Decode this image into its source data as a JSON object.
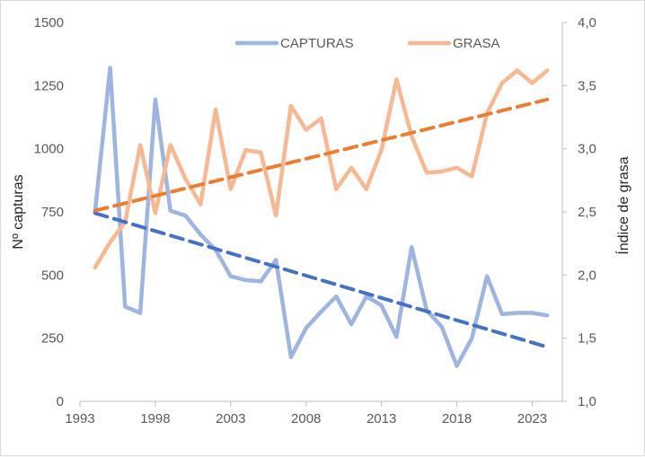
{
  "chart_data": {
    "type": "line",
    "title": "",
    "xlabel": "",
    "ylabel": "Nº capturas",
    "y2label": "Índice de grasa",
    "xlim": [
      1993,
      2025
    ],
    "ylim": [
      0,
      1500
    ],
    "y2lim": [
      1.0,
      4.0
    ],
    "x_ticks": [
      1993,
      1998,
      2003,
      2008,
      2013,
      2018,
      2023
    ],
    "x_tick_labels": [
      "1993",
      "1998",
      "2003",
      "2008",
      "2013",
      "2018",
      "2023"
    ],
    "y_ticks": [
      0,
      250,
      500,
      750,
      1000,
      1250,
      1500
    ],
    "y_tick_labels": [
      "0",
      "250",
      "500",
      "750",
      "1000",
      "1250",
      "1500"
    ],
    "y2_ticks": [
      1.0,
      1.5,
      2.0,
      2.5,
      3.0,
      3.5,
      4.0
    ],
    "y2_tick_labels": [
      "1,0",
      "1,5",
      "2,0",
      "2,5",
      "3,0",
      "3,5",
      "4,0"
    ],
    "grid": false,
    "legend_position": "top-center",
    "series": [
      {
        "name": "CAPTURAS",
        "axis": "left",
        "color": "#9db5e0",
        "x": [
          1994,
          1995,
          1996,
          1997,
          1998,
          1999,
          2000,
          2001,
          2002,
          2003,
          2004,
          2005,
          2006,
          2007,
          2008,
          2009,
          2010,
          2011,
          2012,
          2013,
          2014,
          2015,
          2016,
          2017,
          2018,
          2019,
          2020,
          2021,
          2022,
          2023,
          2024
        ],
        "values": [
          750,
          1320,
          375,
          350,
          1195,
          755,
          735,
          660,
          600,
          495,
          480,
          475,
          560,
          175,
          290,
          355,
          415,
          305,
          415,
          380,
          255,
          610,
          360,
          295,
          140,
          250,
          495,
          345,
          350,
          350,
          340
        ]
      },
      {
        "name": "GRASA",
        "axis": "right",
        "color": "#f6b994",
        "x": [
          1994,
          1995,
          1996,
          1997,
          1998,
          1999,
          2000,
          2001,
          2002,
          2003,
          2004,
          2005,
          2006,
          2007,
          2008,
          2009,
          2010,
          2011,
          2012,
          2013,
          2014,
          2015,
          2016,
          2017,
          2018,
          2019,
          2020,
          2021,
          2022,
          2023,
          2024
        ],
        "values": [
          2.06,
          2.26,
          2.42,
          3.03,
          2.49,
          3.03,
          2.76,
          2.56,
          3.31,
          2.68,
          2.99,
          2.97,
          2.47,
          3.34,
          3.15,
          3.24,
          2.68,
          2.85,
          2.68,
          2.99,
          3.55,
          3.1,
          2.81,
          2.82,
          2.85,
          2.78,
          3.28,
          3.52,
          3.62,
          3.52,
          3.62
        ]
      }
    ],
    "trendlines": [
      {
        "of": "CAPTURAS",
        "axis": "left",
        "color": "#4472c4",
        "style": "dashed",
        "x": [
          1994,
          2024
        ],
        "values": [
          745,
          215
        ]
      },
      {
        "of": "GRASA",
        "axis": "right",
        "color": "#ed7d31",
        "style": "dashed",
        "x": [
          1994,
          2024
        ],
        "values": [
          2.51,
          3.39
        ]
      }
    ]
  }
}
